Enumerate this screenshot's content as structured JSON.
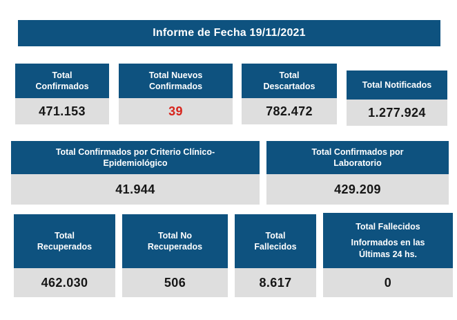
{
  "colors": {
    "primary_blue": "#0e527f",
    "card_body_gray": "#dedede",
    "value_black": "#161616",
    "alert_red": "#d7251d",
    "page_bg": "#ffffff"
  },
  "header": {
    "title": "Informe de Fecha 19/11/2021"
  },
  "row1": {
    "cards": [
      {
        "label": "Total\nConfirmados",
        "value": "471.153"
      },
      {
        "label": "Total Nuevos\nConfirmados",
        "value": "39"
      },
      {
        "label": "Total\nDescartados",
        "value": "782.472"
      },
      {
        "label": "Total Notificados",
        "value": "1.277.924"
      }
    ]
  },
  "row2": {
    "cards": [
      {
        "label": "Total Confirmados por Criterio Clínico-\nEpidemiológico",
        "value": "41.944"
      },
      {
        "label": "Total Confirmados por\nLaboratorio",
        "value": "429.209"
      }
    ]
  },
  "row3": {
    "cards": [
      {
        "label": "Total\nRecuperados",
        "value": "462.030"
      },
      {
        "label": "Total No\nRecuperados",
        "value": "506"
      },
      {
        "label": "Total\nFallecidos",
        "value": "8.617"
      },
      {
        "label": "Total Fallecidos",
        "sublabel": "Informados en las\nÚltimas 24 hs.",
        "value": "0"
      }
    ]
  }
}
